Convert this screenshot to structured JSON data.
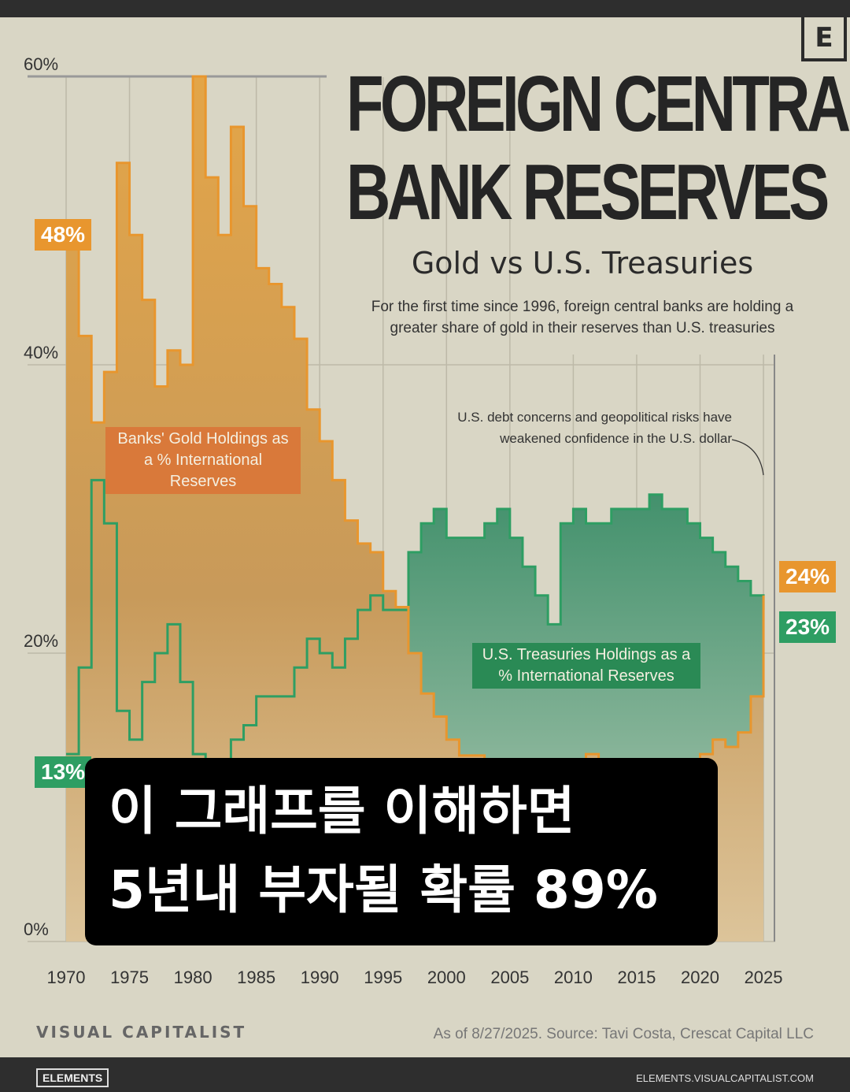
{
  "header": {
    "logo": "E",
    "title_line1": "FOREIGN CENTRAL",
    "title_line2": "BANK RESERVES",
    "subtitle": "Gold vs U.S. Treasuries",
    "description": "For the first time since 1996, foreign central banks are holding a greater share of gold in their reserves than U.S. treasuries"
  },
  "annotation": "U.S. debt concerns and geopolitical risks have weakened confidence in the U.S. dollar",
  "labels": {
    "gold_series": "Banks' Gold Holdings as a % International Reserves",
    "treasury_series": "U.S. Treasuries Holdings as a % International Reserves",
    "gold_start": "48%",
    "treasury_start": "13%",
    "gold_end": "24%",
    "treasury_end": "23%"
  },
  "overlay": {
    "line1": "이 그래프를 이해하면",
    "line2": "5년내 부자될 확률 89%"
  },
  "footer": {
    "brand": "VISUAL CAPITALIST",
    "source": "As of 8/27/2025. Source: Tavi Costa, Crescat Capital LLC",
    "elements": "ELEMENTS",
    "url": "ELEMENTS.VISUALCAPITALIST.COM"
  },
  "colors": {
    "gold": "#e8962e",
    "treasury": "#2e9e63",
    "background": "#d9d6c5"
  },
  "chart_data": {
    "type": "area",
    "ylim": [
      0,
      60
    ],
    "yticks": [
      "0%",
      "20%",
      "40%",
      "60%"
    ],
    "xticks": [
      "1970",
      "1975",
      "1980",
      "1985",
      "1990",
      "1995",
      "2000",
      "2005",
      "2010",
      "2015",
      "2020",
      "2025"
    ],
    "grid": true,
    "x": [
      1970,
      1971,
      1972,
      1973,
      1974,
      1975,
      1976,
      1977,
      1978,
      1979,
      1980,
      1981,
      1982,
      1983,
      1984,
      1985,
      1986,
      1987,
      1988,
      1989,
      1990,
      1991,
      1992,
      1993,
      1994,
      1995,
      1996,
      1997,
      1998,
      1999,
      2000,
      2001,
      2002,
      2003,
      2004,
      2005,
      2006,
      2007,
      2008,
      2009,
      2010,
      2011,
      2012,
      2013,
      2014,
      2015,
      2016,
      2017,
      2018,
      2019,
      2020,
      2021,
      2022,
      2023,
      2024,
      2025
    ],
    "series": [
      {
        "name": "Banks' Gold Holdings as a % International Reserves",
        "values": [
          48,
          42,
          36,
          39.5,
          54,
          49,
          44.5,
          38.5,
          41,
          40,
          60,
          53,
          49,
          56.5,
          51,
          46.7,
          45.6,
          44,
          41.8,
          36.9,
          34.7,
          32,
          29.2,
          27.6,
          27,
          24.3,
          23.2,
          20,
          17.2,
          15.6,
          14,
          12.9,
          12.9,
          11.7,
          11,
          10.5,
          10.5,
          10.5,
          11,
          11,
          12,
          13,
          12,
          11,
          10.5,
          10.5,
          10.5,
          10,
          10.5,
          11,
          13,
          14,
          13.5,
          14.5,
          17,
          24
        ]
      },
      {
        "name": "U.S. Treasuries Holdings as a % International Reserves",
        "values": [
          13,
          19,
          32,
          29,
          16,
          14,
          18,
          20,
          22,
          18,
          13,
          11,
          12,
          14,
          15,
          17,
          17,
          17,
          19,
          21,
          20,
          19,
          21,
          23,
          24,
          23,
          23,
          27,
          29,
          30,
          28,
          28,
          28,
          29,
          30,
          28,
          26,
          24,
          22,
          29,
          30,
          29,
          29,
          30,
          30,
          30,
          31,
          30,
          30,
          29,
          28,
          27,
          26,
          25,
          24,
          23
        ]
      }
    ]
  }
}
